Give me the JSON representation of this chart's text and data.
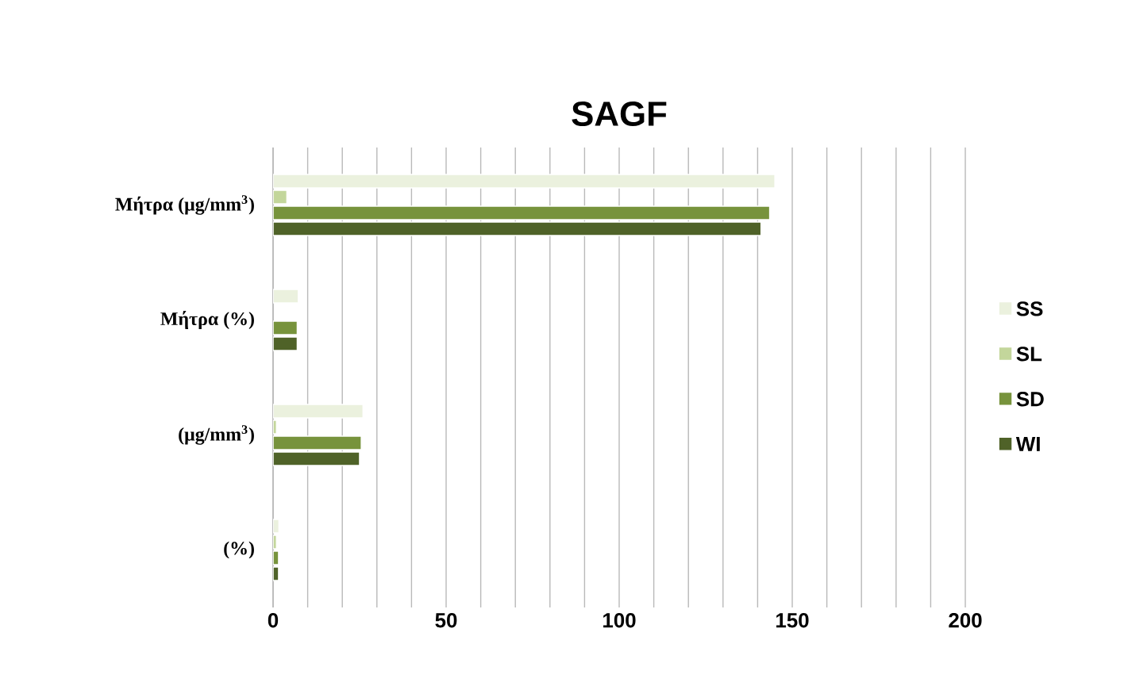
{
  "chart_data": {
    "type": "bar",
    "orientation": "horizontal",
    "title": "SAGF",
    "categories": [
      "Μήτρα (μg/mm$^{3}$)",
      "Μήτρα (%)",
      "(μg/mm$^{3}$)",
      "(%)"
    ],
    "series": [
      {
        "name": "SS",
        "color": "#ebf1de",
        "values": [
          145,
          7.3,
          26,
          1.7
        ]
      },
      {
        "name": "SL",
        "color": "#c3d69b",
        "values": [
          4,
          null,
          1,
          1
        ]
      },
      {
        "name": "SD",
        "color": "#77933c",
        "values": [
          143.5,
          7,
          25.5,
          1.6
        ]
      },
      {
        "name": "WI",
        "color": "#4f6228",
        "values": [
          141,
          7,
          25,
          1.6
        ]
      }
    ],
    "xlim": [
      0,
      200
    ],
    "xticks": [
      0,
      {
        "value": 10,
        "label": null
      },
      {
        "value": 20,
        "label": null
      },
      {
        "value": 30,
        "label": null
      },
      {
        "value": 40,
        "label": null
      },
      50,
      {
        "value": 60,
        "label": null
      },
      {
        "value": 70,
        "label": null
      },
      {
        "value": 80,
        "label": null
      },
      {
        "value": 90,
        "label": null
      },
      100,
      {
        "value": 110,
        "label": null
      },
      {
        "value": 120,
        "label": null
      },
      {
        "value": 130,
        "label": null
      },
      {
        "value": 140,
        "label": null
      },
      150,
      {
        "value": 160,
        "label": null
      },
      {
        "value": 170,
        "label": null
      },
      {
        "value": 180,
        "label": null
      },
      {
        "value": 190,
        "label": null
      },
      200
    ],
    "grid": "x",
    "legend": "right"
  }
}
